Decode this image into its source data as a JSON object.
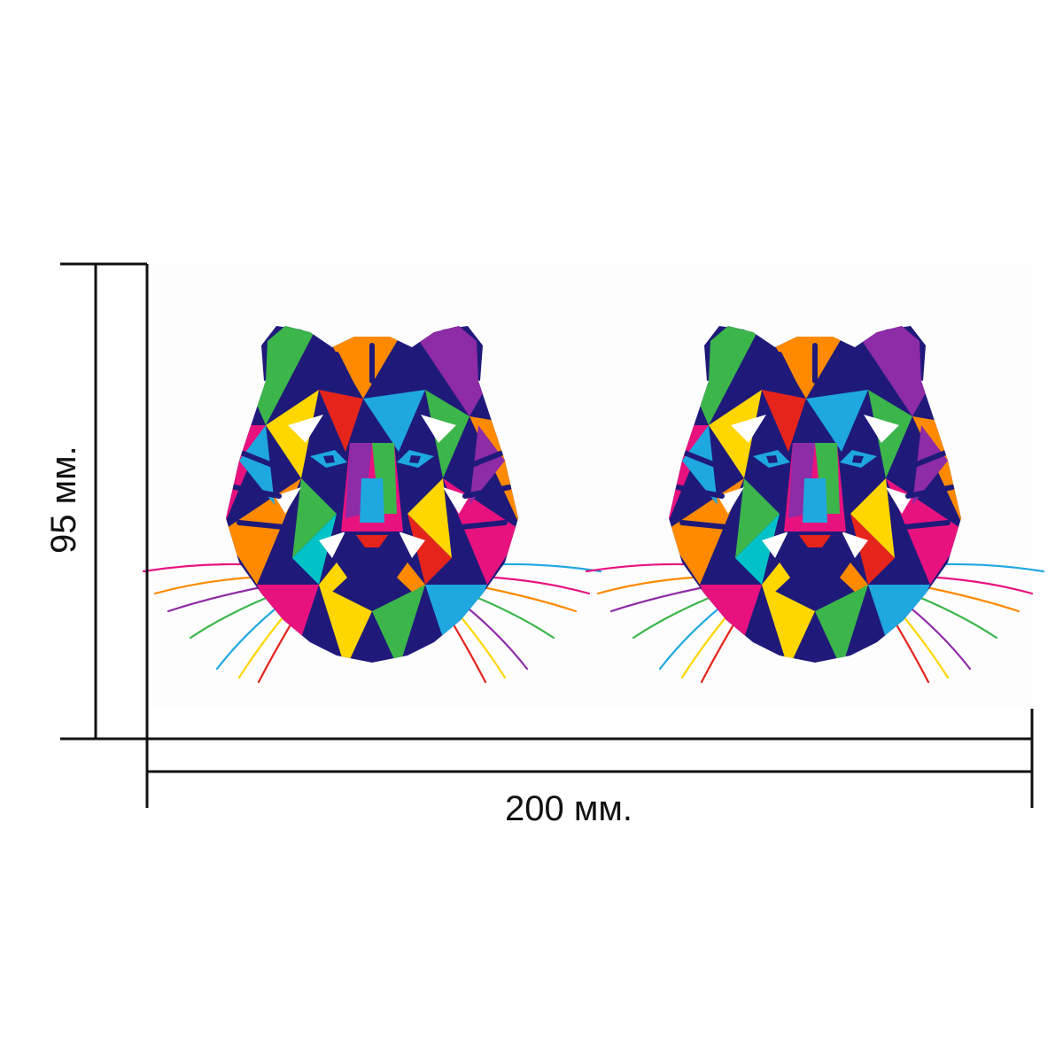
{
  "dimensions": {
    "width_label": "200 мм.",
    "height_label": "95 мм."
  },
  "artwork": {
    "subject": "tiger-head",
    "copies": 2,
    "style": "multicolor low-poly pop-art",
    "palette": [
      "#e8127f",
      "#1f1a7a",
      "#ff8a00",
      "#ffd600",
      "#3cb54a",
      "#1fa7e0",
      "#8e2ba6",
      "#e5241c",
      "#00c2c7"
    ]
  },
  "colors": {
    "background": "#ffffff",
    "dimension_lines": "#111111",
    "print_area": "#fdfdfd"
  }
}
